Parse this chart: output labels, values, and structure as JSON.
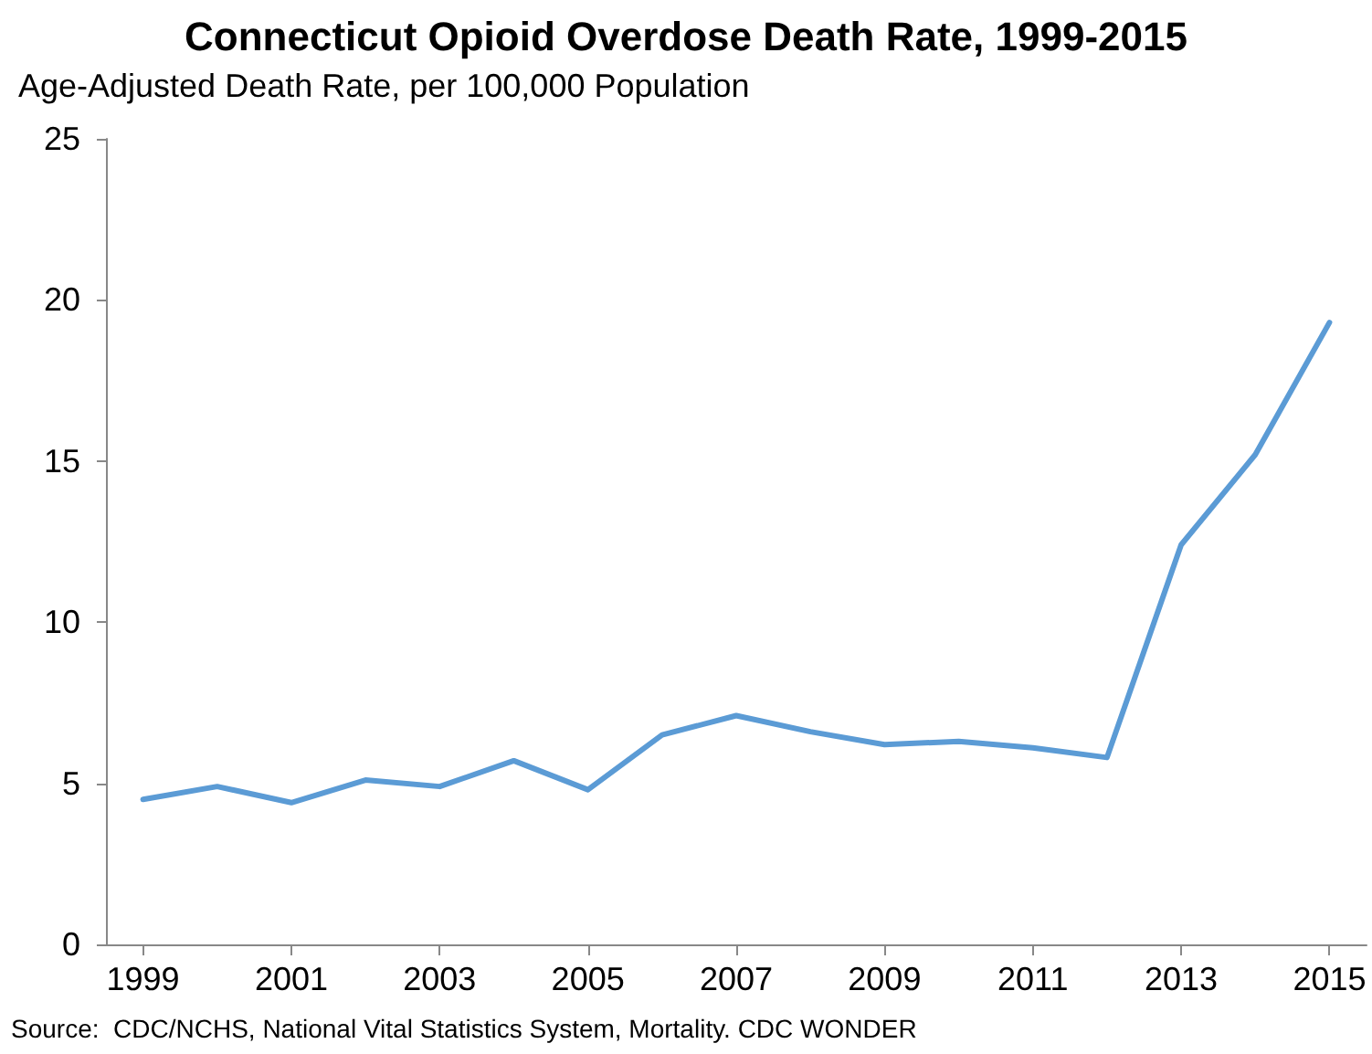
{
  "chart_data": {
    "type": "line",
    "title": "Connecticut Opioid Overdose Death Rate, 1999-2015",
    "ylabel": "Age-Adjusted Death Rate, per 100,000 Population",
    "x": [
      1999,
      2000,
      2001,
      2002,
      2003,
      2004,
      2005,
      2006,
      2007,
      2008,
      2009,
      2010,
      2011,
      2012,
      2013,
      2014,
      2015
    ],
    "series": [
      {
        "color": "#5b9bd5",
        "values": [
          4.5,
          4.9,
          4.4,
          5.1,
          4.9,
          5.7,
          4.8,
          6.5,
          7.1,
          6.6,
          6.2,
          6.3,
          6.1,
          5.8,
          12.4,
          15.2,
          19.3
        ]
      }
    ],
    "xlim": [
      1998.5,
      2015.5
    ],
    "xticks": [
      1999,
      2001,
      2003,
      2005,
      2007,
      2009,
      2011,
      2013,
      2015
    ],
    "ylim": [
      0,
      25
    ],
    "yticks": [
      0,
      5,
      10,
      15,
      20,
      25
    ],
    "grid": false,
    "marker": "none",
    "line_style": "solid",
    "annotations": [
      "Source:  CDC/NCHS, National Vital Statistics System, Mortality. CDC WONDER"
    ]
  }
}
